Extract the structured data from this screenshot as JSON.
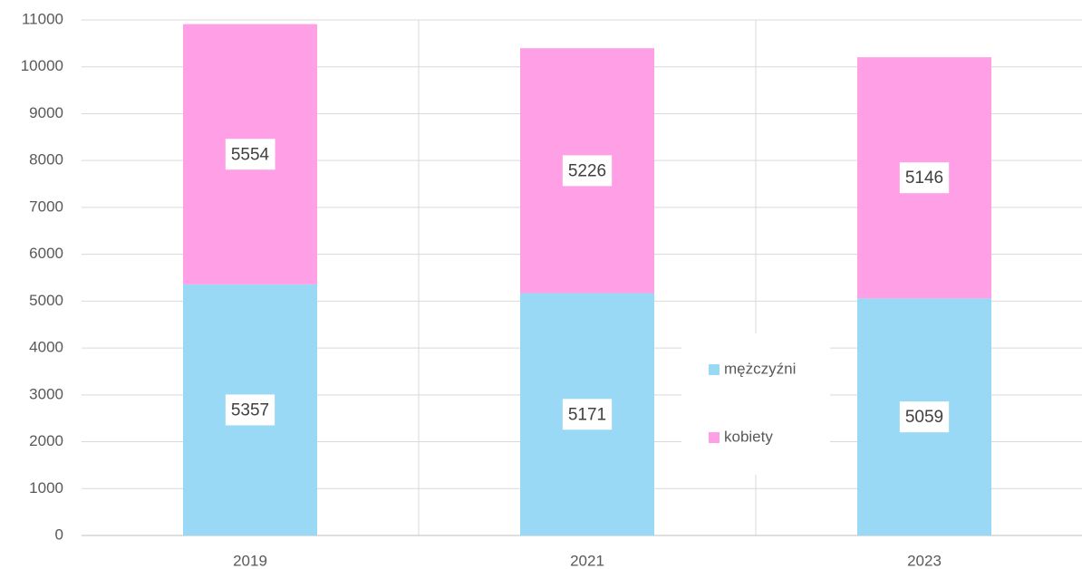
{
  "chart_data": {
    "type": "bar",
    "stacked": true,
    "categories": [
      "2019",
      "2021",
      "2023"
    ],
    "series": [
      {
        "name": "mężczyźni",
        "color": "#99d9f5",
        "values": [
          5357,
          5171,
          5059
        ]
      },
      {
        "name": "kobiety",
        "color": "#ffa0e6",
        "values": [
          5554,
          5226,
          5146
        ]
      }
    ],
    "ylim": [
      0,
      11000
    ],
    "yticks": [
      0,
      1000,
      2000,
      3000,
      4000,
      5000,
      6000,
      7000,
      8000,
      9000,
      10000,
      11000
    ],
    "grid": true,
    "data_labels": true
  }
}
